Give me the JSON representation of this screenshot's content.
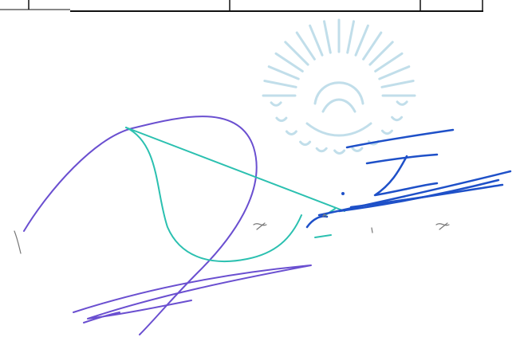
{
  "document": {
    "table_fragment": {
      "visible_text": []
    },
    "seal": {
      "text": "",
      "color": "#8fc4d9"
    },
    "signatures": [
      {
        "name": "",
        "color": "#6a4fd0"
      },
      {
        "name": "",
        "color": "#2bc0b0"
      },
      {
        "name": "",
        "color": "#1e50c8"
      }
    ]
  }
}
